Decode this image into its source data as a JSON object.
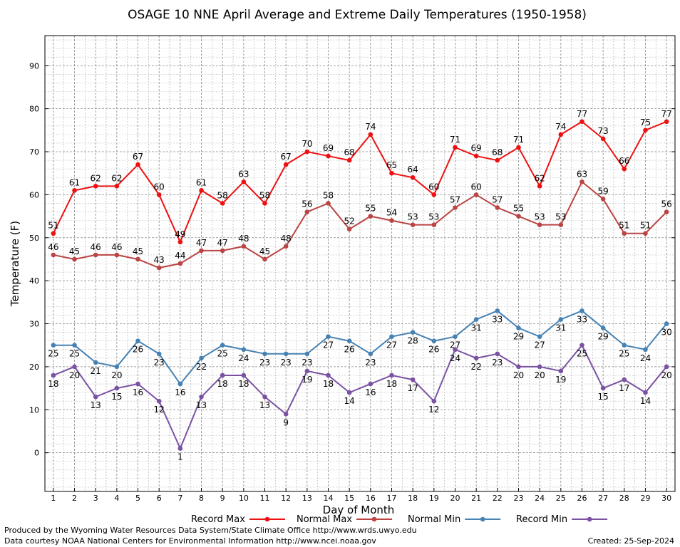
{
  "chart_data": {
    "type": "line",
    "title": "OSAGE 10 NNE April Average and Extreme Daily Temperatures (1950-1958)",
    "xlabel": "Day of Month",
    "ylabel": "Temperature (F)",
    "x": [
      1,
      2,
      3,
      4,
      5,
      6,
      7,
      8,
      9,
      10,
      11,
      12,
      13,
      14,
      15,
      16,
      17,
      18,
      19,
      20,
      21,
      22,
      23,
      24,
      25,
      26,
      27,
      28,
      29,
      30
    ],
    "xlim": [
      0.6,
      30.4
    ],
    "ylim": [
      -9,
      97
    ],
    "yticks": [
      0,
      10,
      20,
      30,
      40,
      50,
      60,
      70,
      80,
      90
    ],
    "grid": true,
    "legend_position": "bottom",
    "series": [
      {
        "name": "Record Max",
        "color": "#ee1111",
        "label_pos": "above",
        "values": [
          51,
          61,
          62,
          62,
          67,
          60,
          49,
          61,
          58,
          63,
          58,
          67,
          70,
          69,
          68,
          74,
          65,
          64,
          60,
          71,
          69,
          68,
          71,
          62,
          74,
          77,
          73,
          66,
          75,
          77
        ]
      },
      {
        "name": "Normal Max",
        "color": "#bb4444",
        "label_pos": "above",
        "values": [
          46,
          45,
          46,
          46,
          45,
          43,
          44,
          47,
          47,
          48,
          45,
          48,
          56,
          58,
          52,
          55,
          54,
          53,
          53,
          57,
          60,
          57,
          55,
          53,
          53,
          63,
          59,
          51,
          51,
          56
        ]
      },
      {
        "name": "Normal Min",
        "color": "#4682b4",
        "label_pos": "below",
        "values": [
          25,
          25,
          21,
          20,
          26,
          23,
          16,
          22,
          25,
          24,
          23,
          23,
          23,
          27,
          26,
          23,
          27,
          28,
          26,
          27,
          31,
          33,
          29,
          27,
          31,
          33,
          29,
          25,
          24,
          30
        ]
      },
      {
        "name": "Record Min",
        "color": "#7b52a3",
        "label_pos": "below",
        "values": [
          18,
          20,
          13,
          15,
          16,
          12,
          1,
          13,
          18,
          18,
          13,
          9,
          19,
          18,
          14,
          16,
          18,
          17,
          12,
          24,
          22,
          23,
          20,
          20,
          19,
          25,
          15,
          17,
          14,
          20
        ]
      }
    ]
  },
  "footer": {
    "produced_by": "Produced by the Wyoming Water Resources Data System/State Climate Office http://www.wrds.uwyo.edu",
    "courtesy": "Data courtesy NOAA National Centers for Environmental Information http://www.ncei.noaa.gov",
    "created": "Created:  25-Sep-2024"
  }
}
